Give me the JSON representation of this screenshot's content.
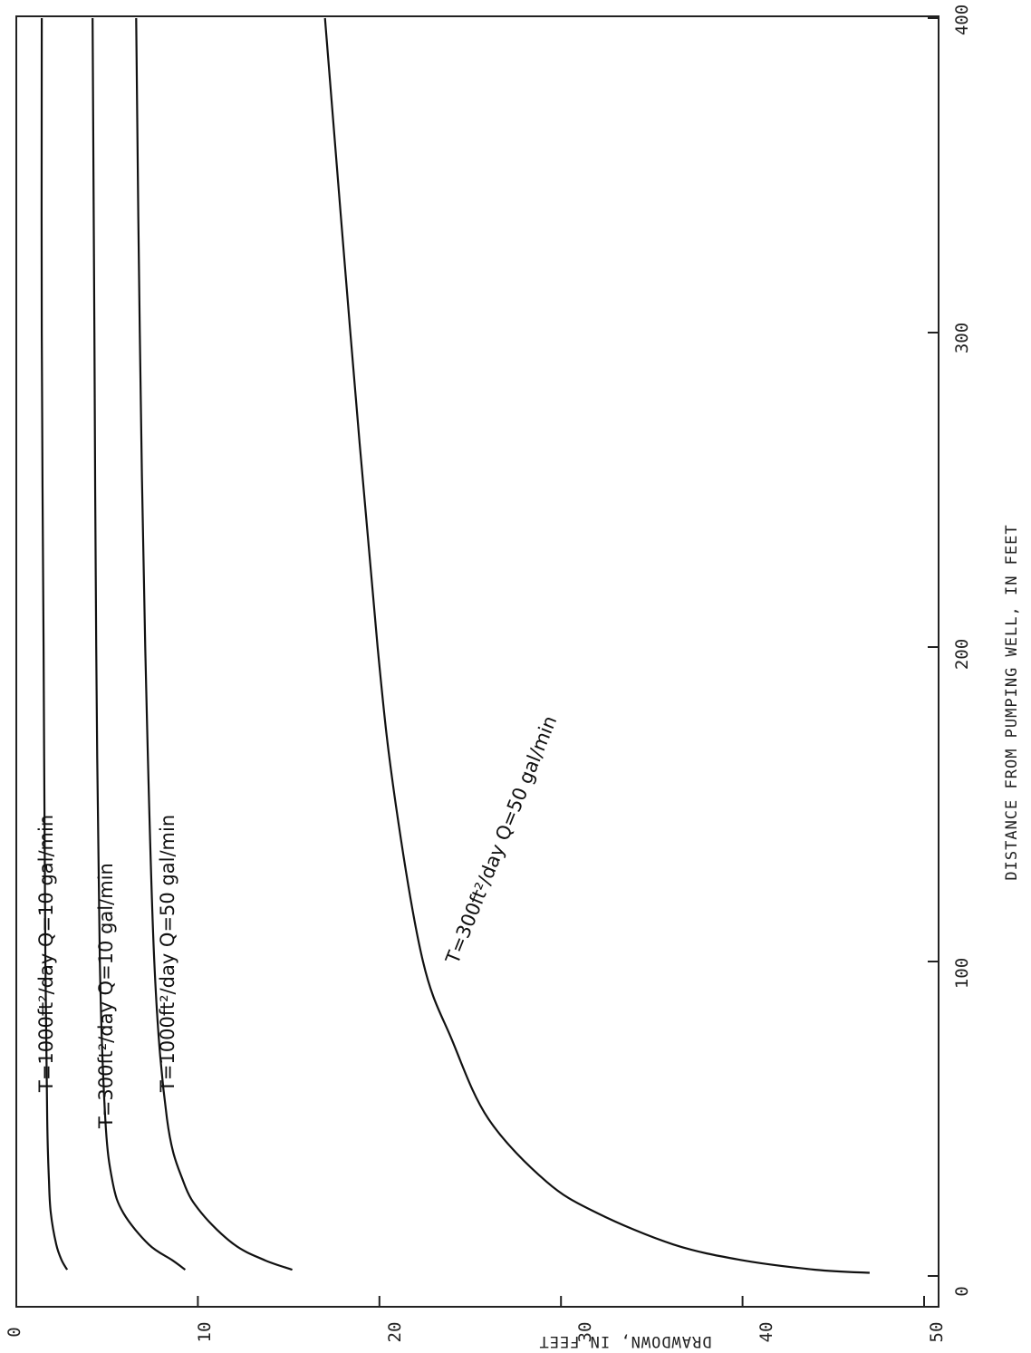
{
  "chart_data": {
    "type": "line",
    "title": "",
    "xlabel": "DISTANCE FROM PUMPING WELL, IN FEET",
    "ylabel": "DRAWDOWN, IN FEET",
    "xlim": [
      0,
      400
    ],
    "ylim": [
      0,
      50
    ],
    "y_inverted": true,
    "x_ticks": [
      0,
      100,
      200,
      300,
      400
    ],
    "y_ticks": [
      0,
      10,
      20,
      30,
      40,
      50
    ],
    "grid": false,
    "series": [
      {
        "name": "T=1000ft²/day  Q=10 gal/min",
        "points": [
          [
            2,
            2.8
          ],
          [
            5,
            2.5
          ],
          [
            10,
            2.2
          ],
          [
            20,
            1.9
          ],
          [
            30,
            1.8
          ],
          [
            50,
            1.7
          ],
          [
            100,
            1.6
          ],
          [
            200,
            1.5
          ],
          [
            300,
            1.4
          ],
          [
            400,
            1.4
          ]
        ]
      },
      {
        "name": "T=300ft²/day  Q=10 gal/min",
        "points": [
          [
            2,
            9.3
          ],
          [
            5,
            8.6
          ],
          [
            10,
            7.3
          ],
          [
            20,
            5.9
          ],
          [
            30,
            5.3
          ],
          [
            50,
            4.9
          ],
          [
            100,
            4.6
          ],
          [
            200,
            4.4
          ],
          [
            300,
            4.3
          ],
          [
            400,
            4.2
          ]
        ]
      },
      {
        "name": "T=1000ft²/day  Q=50 gal/min",
        "points": [
          [
            2,
            15.2
          ],
          [
            5,
            13.7
          ],
          [
            10,
            12.0
          ],
          [
            20,
            10.2
          ],
          [
            30,
            9.2
          ],
          [
            50,
            8.3
          ],
          [
            100,
            7.6
          ],
          [
            200,
            7.1
          ],
          [
            300,
            6.8
          ],
          [
            400,
            6.6
          ]
        ]
      },
      {
        "name": "T=300ft²/day  Q=50 gal/min",
        "points": [
          [
            1,
            47.0
          ],
          [
            2,
            44.0
          ],
          [
            5,
            40.0
          ],
          [
            10,
            36.2
          ],
          [
            20,
            32.0
          ],
          [
            30,
            29.2
          ],
          [
            50,
            26.0
          ],
          [
            75,
            24.0
          ],
          [
            100,
            22.4
          ],
          [
            150,
            20.9
          ],
          [
            200,
            19.9
          ],
          [
            300,
            18.4
          ],
          [
            400,
            17.0
          ]
        ]
      }
    ]
  },
  "labels": {
    "tick_x": [
      "0",
      "100",
      "200",
      "300",
      "400"
    ],
    "tick_y": [
      "0",
      "10",
      "20",
      "30",
      "40",
      "50"
    ],
    "curve_1": "T=1000ft²/day    Q=10 gal/min",
    "curve_2": "T=300ft²/day    Q=10 gal/min",
    "curve_3": "T=1000ft²/day    Q=50 gal/min",
    "curve_4": "T=300ft²/day    Q=50 gal/min"
  }
}
